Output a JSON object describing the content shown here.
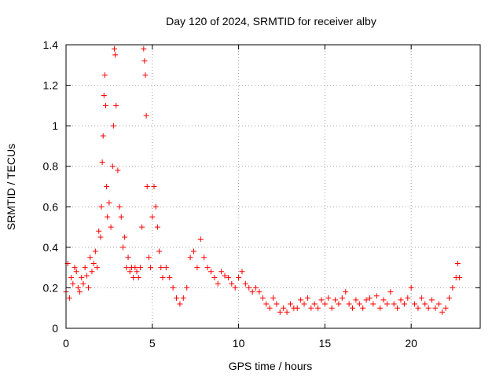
{
  "chart_data": {
    "type": "scatter",
    "marker": "+",
    "color": "#ff0000",
    "title": "Day 120 of 2024, SRMTID for receiver alby",
    "xlabel": "GPS time / hours",
    "ylabel": "SRMTID / TECUs",
    "xlim": [
      0,
      24
    ],
    "ylim": [
      0,
      1.4
    ],
    "xticks": [
      0,
      5,
      10,
      15,
      20
    ],
    "xtick_labels": [
      "0",
      "5",
      "10",
      "15",
      "20"
    ],
    "yticks": [
      0,
      0.2,
      0.4,
      0.6,
      0.8,
      1.0,
      1.2,
      1.4
    ],
    "ytick_labels": [
      "0",
      "0.2",
      "0.4",
      "0.6",
      "0.8",
      "1",
      "1.2",
      "1.4"
    ],
    "grid": true,
    "legend": "none",
    "series": [
      {
        "name": "SRMTID",
        "x": [
          0.0,
          0.1,
          0.2,
          0.3,
          0.4,
          0.5,
          0.6,
          0.7,
          0.8,
          0.9,
          1.0,
          1.1,
          1.2,
          1.3,
          1.4,
          1.5,
          1.6,
          1.7,
          1.8,
          1.9,
          2.0,
          2.05,
          2.1,
          2.15,
          2.2,
          2.25,
          2.3,
          2.35,
          2.4,
          2.5,
          2.6,
          2.7,
          2.75,
          2.8,
          2.85,
          2.9,
          3.0,
          3.1,
          3.2,
          3.3,
          3.4,
          3.5,
          3.6,
          3.7,
          3.8,
          3.9,
          4.0,
          4.1,
          4.2,
          4.3,
          4.4,
          4.5,
          4.55,
          4.6,
          4.65,
          4.7,
          4.8,
          4.9,
          5.0,
          5.1,
          5.2,
          5.3,
          5.4,
          5.5,
          5.6,
          5.8,
          6.0,
          6.2,
          6.4,
          6.6,
          6.8,
          7.0,
          7.2,
          7.4,
          7.6,
          7.8,
          8.0,
          8.2,
          8.4,
          8.6,
          8.8,
          9.0,
          9.2,
          9.4,
          9.6,
          9.8,
          10.0,
          10.2,
          10.4,
          10.6,
          10.8,
          11.0,
          11.2,
          11.4,
          11.6,
          11.8,
          12.0,
          12.2,
          12.4,
          12.6,
          12.8,
          13.0,
          13.2,
          13.4,
          13.6,
          13.8,
          14.0,
          14.2,
          14.4,
          14.6,
          14.8,
          15.0,
          15.2,
          15.4,
          15.6,
          15.8,
          16.0,
          16.2,
          16.4,
          16.6,
          16.8,
          17.0,
          17.2,
          17.4,
          17.6,
          17.8,
          18.0,
          18.2,
          18.4,
          18.6,
          18.8,
          19.0,
          19.2,
          19.4,
          19.6,
          19.8,
          20.0,
          20.2,
          20.4,
          20.6,
          20.8,
          21.0,
          21.2,
          21.4,
          21.6,
          21.8,
          22.0,
          22.2,
          22.4,
          22.6,
          22.7,
          22.8
        ],
        "y": [
          0.18,
          0.32,
          0.15,
          0.25,
          0.22,
          0.3,
          0.28,
          0.2,
          0.18,
          0.25,
          0.22,
          0.3,
          0.26,
          0.2,
          0.35,
          0.28,
          0.32,
          0.38,
          0.3,
          0.48,
          0.45,
          0.6,
          0.82,
          0.95,
          1.15,
          1.25,
          1.1,
          0.7,
          0.55,
          0.62,
          0.5,
          0.8,
          1.0,
          1.38,
          1.35,
          1.1,
          0.78,
          0.6,
          0.55,
          0.4,
          0.45,
          0.3,
          0.35,
          0.28,
          0.3,
          0.25,
          0.3,
          0.28,
          0.25,
          0.3,
          0.5,
          1.38,
          1.32,
          1.25,
          1.05,
          0.7,
          0.35,
          0.3,
          0.55,
          0.7,
          0.6,
          0.5,
          0.38,
          0.3,
          0.25,
          0.3,
          0.25,
          0.2,
          0.15,
          0.12,
          0.15,
          0.2,
          0.35,
          0.38,
          0.3,
          0.44,
          0.35,
          0.3,
          0.28,
          0.25,
          0.22,
          0.28,
          0.26,
          0.25,
          0.22,
          0.2,
          0.25,
          0.28,
          0.22,
          0.2,
          0.18,
          0.2,
          0.18,
          0.15,
          0.12,
          0.1,
          0.15,
          0.12,
          0.08,
          0.1,
          0.08,
          0.12,
          0.1,
          0.1,
          0.14,
          0.12,
          0.15,
          0.1,
          0.12,
          0.1,
          0.14,
          0.12,
          0.15,
          0.1,
          0.14,
          0.12,
          0.15,
          0.18,
          0.12,
          0.1,
          0.14,
          0.12,
          0.1,
          0.14,
          0.15,
          0.12,
          0.16,
          0.1,
          0.14,
          0.12,
          0.18,
          0.12,
          0.1,
          0.14,
          0.12,
          0.15,
          0.2,
          0.12,
          0.1,
          0.15,
          0.12,
          0.1,
          0.14,
          0.1,
          0.12,
          0.08,
          0.1,
          0.15,
          0.2,
          0.25,
          0.32,
          0.25
        ]
      }
    ]
  }
}
